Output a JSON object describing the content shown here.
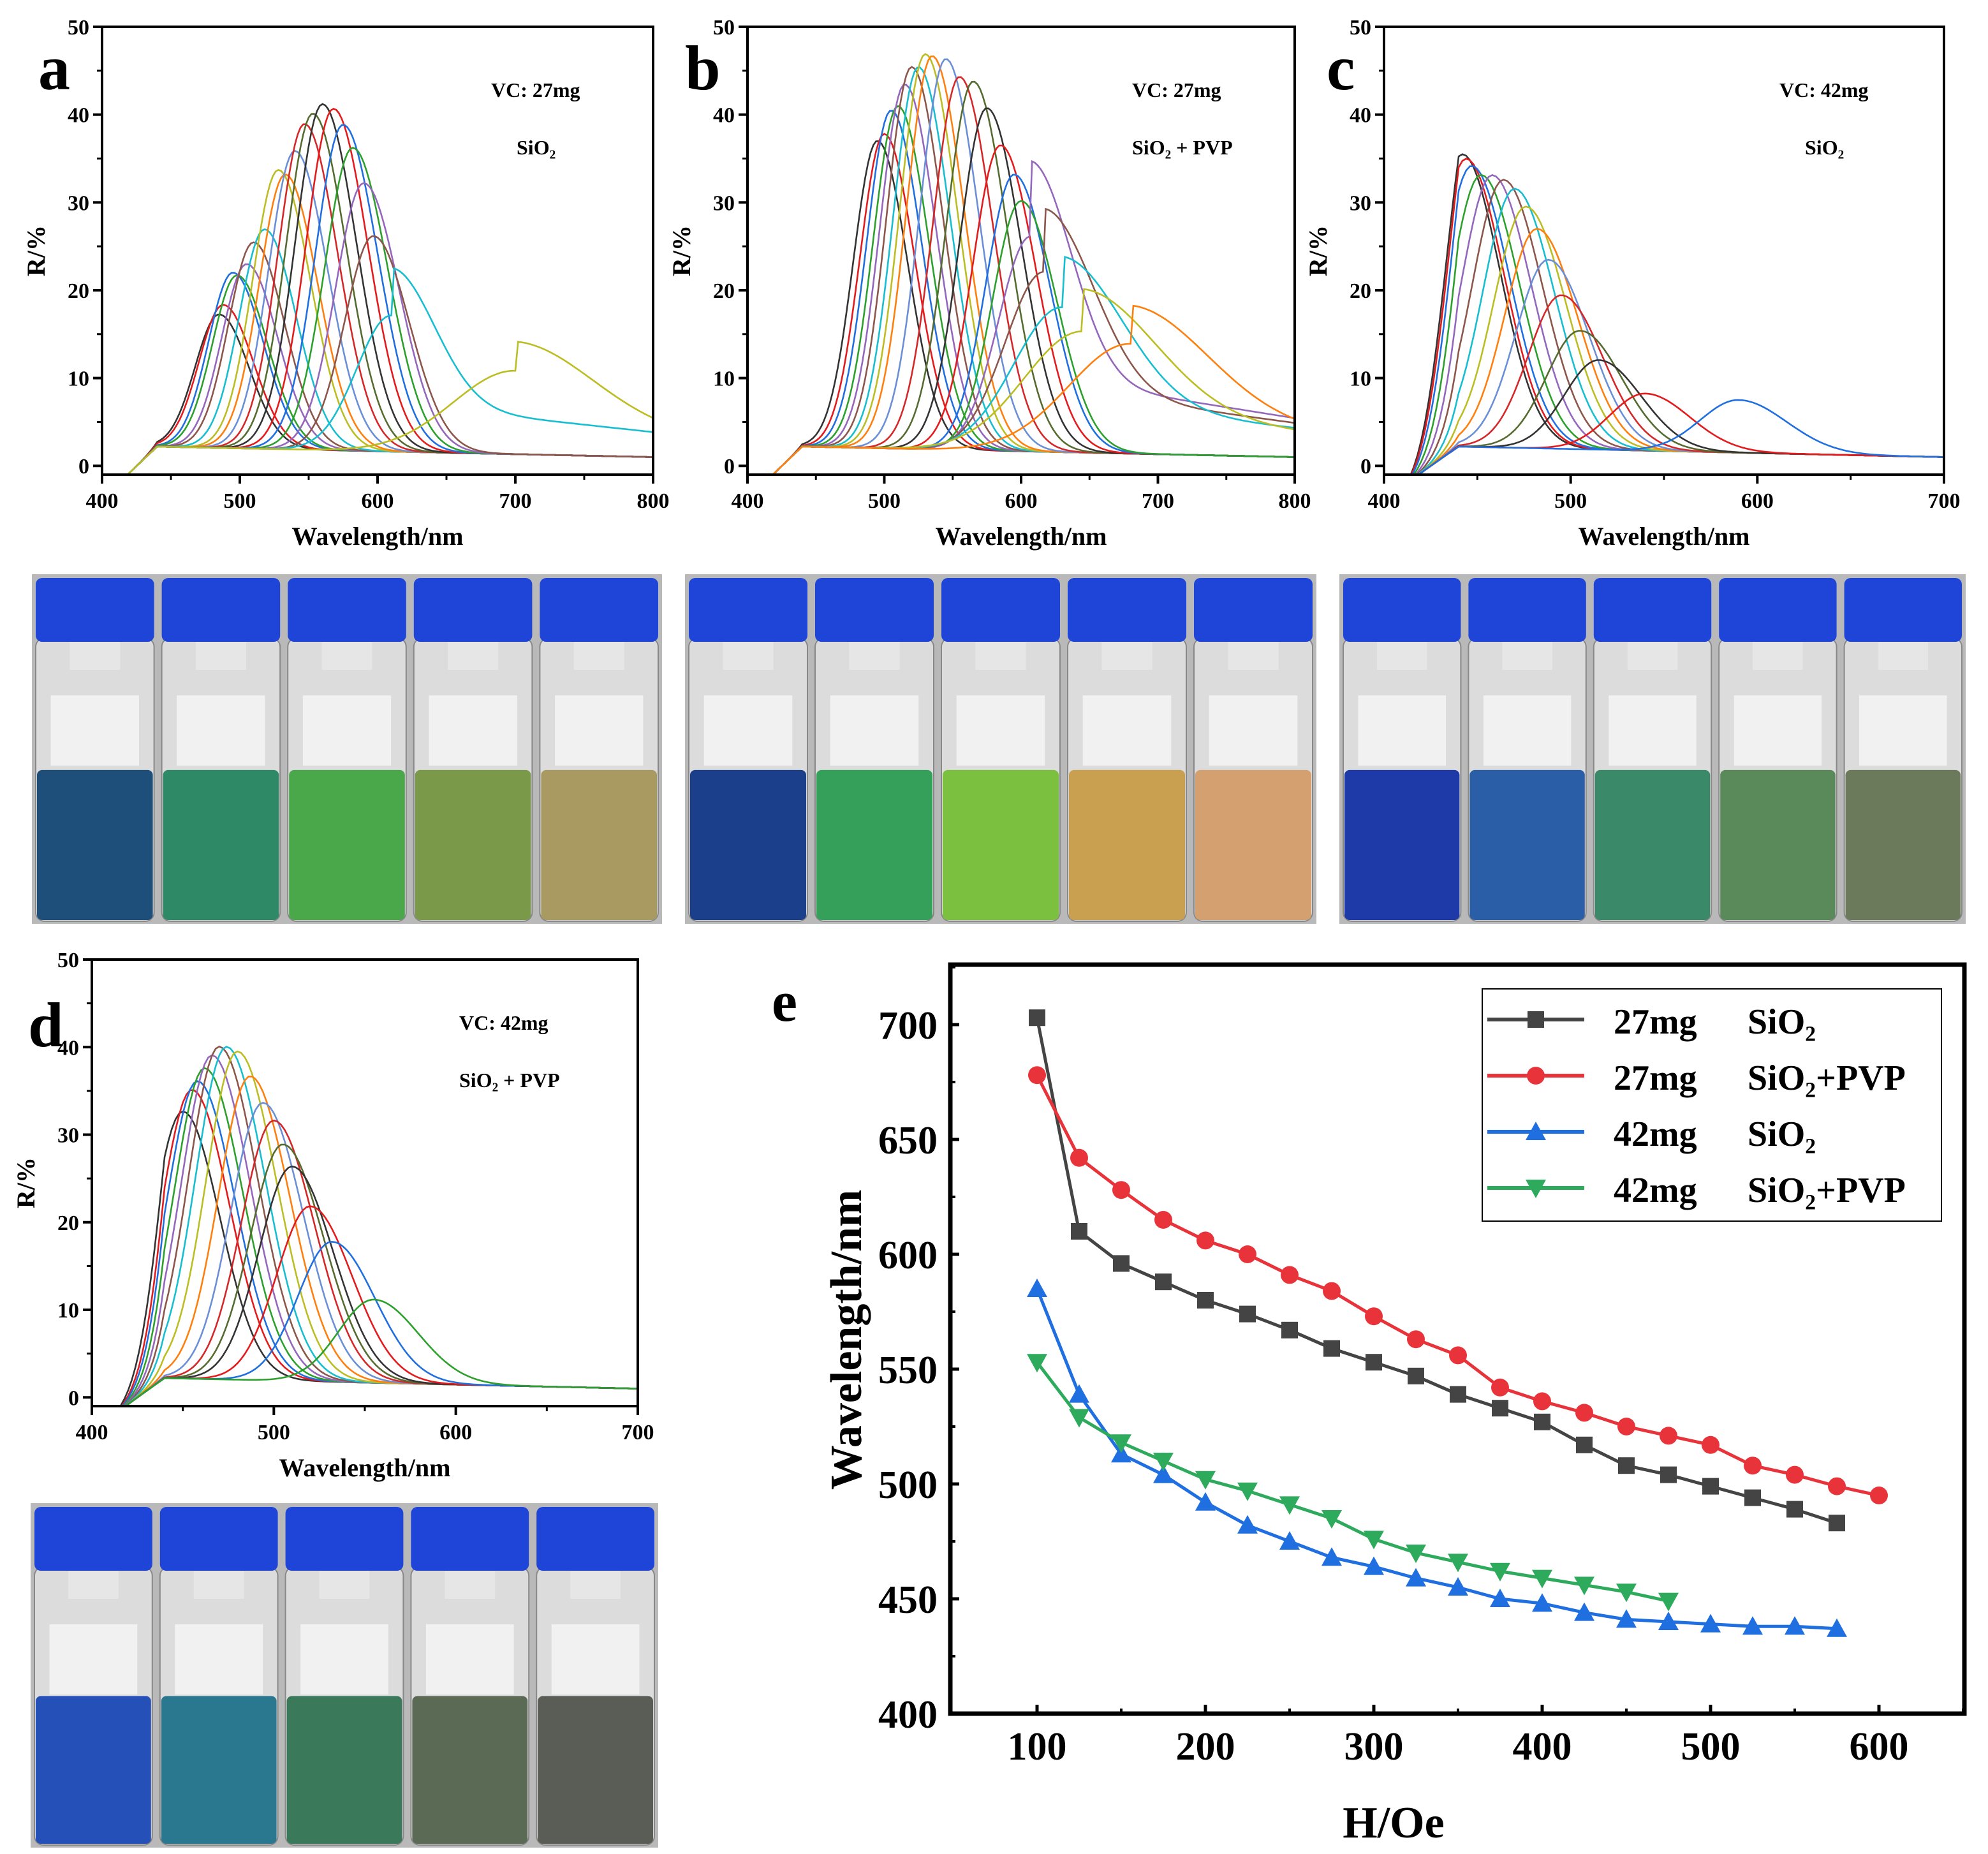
{
  "chart_data": [
    {
      "panel": "a",
      "type": "line",
      "annotation": [
        "VC: 27mg",
        "SiO₂"
      ],
      "xlabel": "Wavelength/nm",
      "ylabel": "R/%",
      "xlim": [
        400,
        800
      ],
      "ylim": [
        -1,
        50
      ],
      "xticks": [
        400,
        500,
        600,
        700,
        800
      ],
      "yticks": [
        0,
        10,
        20,
        30,
        40,
        50
      ],
      "peaks": [
        [
          485,
          15.2
        ],
        [
          488,
          16.3
        ],
        [
          495,
          20
        ],
        [
          498,
          19.7
        ],
        [
          505,
          21
        ],
        [
          510,
          23.5
        ],
        [
          518,
          25
        ],
        [
          528,
          31.8
        ],
        [
          533,
          31.3
        ],
        [
          540,
          34
        ],
        [
          547,
          37.1
        ],
        [
          553,
          38.3
        ],
        [
          560,
          39.4
        ],
        [
          568,
          38.9
        ],
        [
          575,
          37.1
        ],
        [
          582,
          34.5
        ],
        [
          590,
          30.5
        ],
        [
          597,
          24.5
        ],
        [
          610,
          15.5
        ],
        [
          700,
          9.5
        ]
      ]
    },
    {
      "panel": "b",
      "type": "line",
      "annotation": [
        "VC: 27mg",
        "SiO₂ + PVP"
      ],
      "xlabel": "Wavelength/nm",
      "ylabel": "R/%",
      "xlim": [
        400,
        800
      ],
      "ylim": [
        -1,
        50
      ],
      "xticks": [
        400,
        500,
        600,
        700,
        800
      ],
      "yticks": [
        0,
        10,
        20,
        30,
        40,
        50
      ],
      "peaks": [
        [
          495,
          35
        ],
        [
          500,
          35.8
        ],
        [
          505,
          38.5
        ],
        [
          510,
          39
        ],
        [
          515,
          41.5
        ],
        [
          520,
          43.5
        ],
        [
          525,
          43.5
        ],
        [
          530,
          45
        ],
        [
          535,
          44.8
        ],
        [
          545,
          44.5
        ],
        [
          555,
          42.5
        ],
        [
          565,
          42
        ],
        [
          575,
          39
        ],
        [
          585,
          34.8
        ],
        [
          595,
          31.5
        ],
        [
          600,
          28.5
        ],
        [
          607,
          24.5
        ],
        [
          617,
          20.5
        ],
        [
          630,
          16.5
        ],
        [
          645,
          13.8
        ],
        [
          680,
          12.5
        ]
      ]
    },
    {
      "panel": "c",
      "type": "line",
      "annotation": [
        "VC: 42mg",
        "SiO₂"
      ],
      "xlabel": "Wavelength/nm",
      "ylabel": "R/%",
      "xlim": [
        400,
        700
      ],
      "ylim": [
        -1,
        50
      ],
      "xticks": [
        400,
        500,
        600,
        700
      ],
      "yticks": [
        0,
        10,
        20,
        30,
        40,
        50
      ],
      "peaks": [
        [
          442,
          33.3
        ],
        [
          444,
          32.8
        ],
        [
          447,
          32
        ],
        [
          452,
          31
        ],
        [
          458,
          31
        ],
        [
          464,
          30.5
        ],
        [
          470,
          29.5
        ],
        [
          476,
          27.5
        ],
        [
          482,
          25
        ],
        [
          488,
          21.5
        ],
        [
          495,
          17.5
        ],
        [
          505,
          13.5
        ],
        [
          515,
          10.2
        ],
        [
          540,
          6.5
        ],
        [
          590,
          6
        ]
      ]
    },
    {
      "panel": "d",
      "type": "line",
      "annotation": [
        "VC: 42mg",
        "SiO₂ + PVP"
      ],
      "xlabel": "Wavelength/nm",
      "ylabel": "R/%",
      "xlim": [
        400,
        700
      ],
      "ylim": [
        -1,
        50
      ],
      "xticks": [
        400,
        500,
        600,
        700
      ],
      "yticks": [
        0,
        10,
        20,
        30,
        40,
        50
      ],
      "peaks": [
        [
          450,
          30.5
        ],
        [
          455,
          33
        ],
        [
          458,
          34
        ],
        [
          462,
          35.5
        ],
        [
          466,
          37
        ],
        [
          470,
          38
        ],
        [
          474,
          38
        ],
        [
          480,
          37.5
        ],
        [
          487,
          34.7
        ],
        [
          494,
          31.7
        ],
        [
          500,
          29.7
        ],
        [
          505,
          27
        ],
        [
          510,
          24.5
        ],
        [
          520,
          20
        ],
        [
          532,
          16
        ],
        [
          555,
          9.5
        ]
      ]
    },
    {
      "panel": "e",
      "type": "line",
      "xlabel": "H/Oe",
      "ylabel": "Wavelength/nm",
      "xlim": [
        50,
        655
      ],
      "ylim": [
        400,
        720
      ],
      "xticks": [
        100,
        200,
        300,
        400,
        500,
        600
      ],
      "yticks": [
        400,
        450,
        500,
        550,
        600,
        650,
        700
      ],
      "legend_position": "top-right",
      "series": [
        {
          "sample": "27mg",
          "material": "SiO₂",
          "color": "#444444",
          "marker": "square",
          "x": [
            100,
            125,
            150,
            175,
            200,
            225,
            250,
            275,
            300,
            325,
            350,
            375,
            400,
            425,
            450,
            475,
            500,
            525,
            550,
            575
          ],
          "y": [
            703,
            610,
            596,
            588,
            580,
            574,
            567,
            559,
            553,
            547,
            539,
            533,
            527,
            517,
            508,
            504,
            499,
            494,
            489,
            483
          ]
        },
        {
          "sample": "27mg",
          "material": "SiO₂+PVP",
          "color": "#e8333a",
          "marker": "circle",
          "x": [
            100,
            125,
            150,
            175,
            200,
            225,
            250,
            275,
            300,
            325,
            350,
            375,
            400,
            425,
            450,
            475,
            500,
            525,
            550,
            575,
            600
          ],
          "y": [
            678,
            642,
            628,
            615,
            606,
            600,
            591,
            584,
            573,
            563,
            556,
            542,
            536,
            531,
            525,
            521,
            517,
            508,
            504,
            499,
            495
          ]
        },
        {
          "sample": "42mg",
          "material": "SiO₂",
          "color": "#1f6fe0",
          "marker": "triangle-up",
          "x": [
            100,
            125,
            150,
            175,
            200,
            225,
            250,
            275,
            300,
            325,
            350,
            375,
            400,
            425,
            450,
            475,
            500,
            525,
            550,
            575
          ],
          "y": [
            585,
            539,
            513,
            504,
            492,
            482,
            475,
            468,
            464,
            459,
            455,
            450,
            448,
            444,
            441,
            440,
            439,
            438,
            438,
            437
          ]
        },
        {
          "sample": "42mg",
          "material": "SiO₂+PVP",
          "color": "#2eaa5c",
          "marker": "triangle-down",
          "x": [
            100,
            125,
            150,
            175,
            200,
            225,
            250,
            275,
            300,
            325,
            350,
            375,
            400,
            425,
            450,
            475
          ],
          "y": [
            553,
            529,
            518,
            510,
            502,
            497,
            491,
            485,
            476,
            470,
            466,
            462,
            459,
            456,
            453,
            449
          ]
        }
      ]
    }
  ],
  "photos": {
    "a": [
      "#1e4f7a",
      "#2e8a66",
      "#4aa84a",
      "#7a9a4a",
      "#a89a60"
    ],
    "b": [
      "#1b3f8a",
      "#35a05a",
      "#7cc040",
      "#c9a050",
      "#d4a070"
    ],
    "c": [
      "#1e3aa8",
      "#2a5fa8",
      "#3a8a6a",
      "#5a8a5a",
      "#6a7a5a"
    ],
    "d": [
      "#2550b8",
      "#2a7890",
      "#3a7a5a",
      "#5a6a55",
      "#5a5d55"
    ],
    "cap_color": "#1f45d8"
  },
  "curve_palette": [
    "#333333",
    "#e41a1c",
    "#1f6fe0",
    "#2ca02c",
    "#9467bd",
    "#8c564b",
    "#17becf",
    "#bcbd22",
    "#ff7f0e",
    "#6b8fd6",
    "#d62728",
    "#556b2f"
  ]
}
